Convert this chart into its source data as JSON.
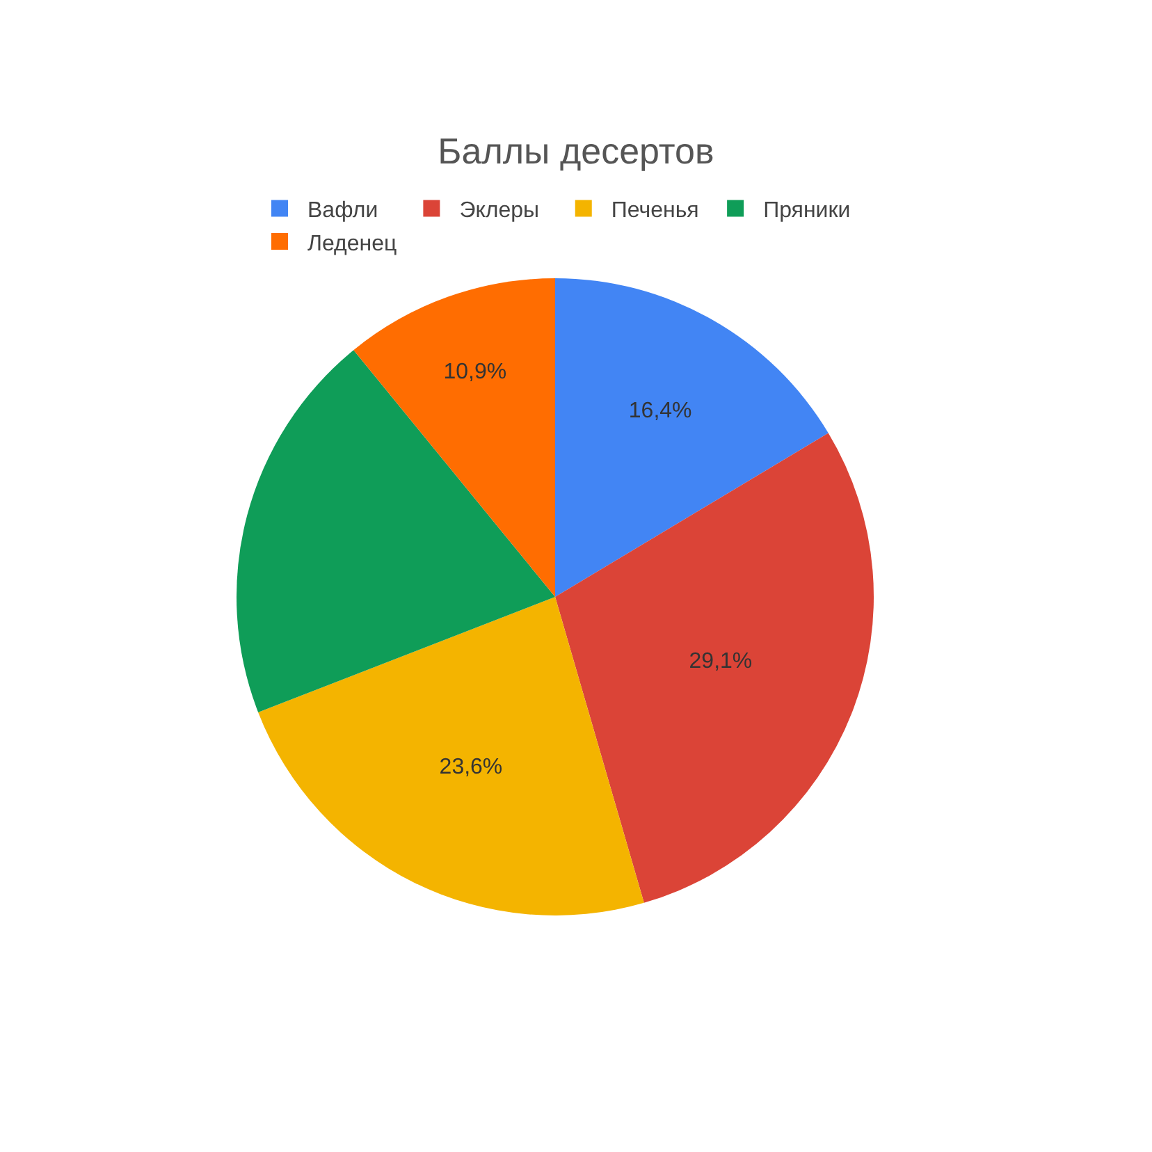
{
  "chart_data": {
    "type": "pie",
    "title": "Баллы десертов",
    "categories": [
      "Вафли",
      "Эклеры",
      "Печенья",
      "Пряники",
      "Леденец"
    ],
    "values": [
      16.4,
      29.1,
      23.6,
      20.0,
      10.9
    ],
    "value_labels": [
      "16,4%",
      "29,1%",
      "23,6%",
      null,
      "10,9%"
    ],
    "colors": [
      "#4285f4",
      "#db4437",
      "#f4b400",
      "#0f9d58",
      "#ff6d01"
    ],
    "legend": "top"
  }
}
